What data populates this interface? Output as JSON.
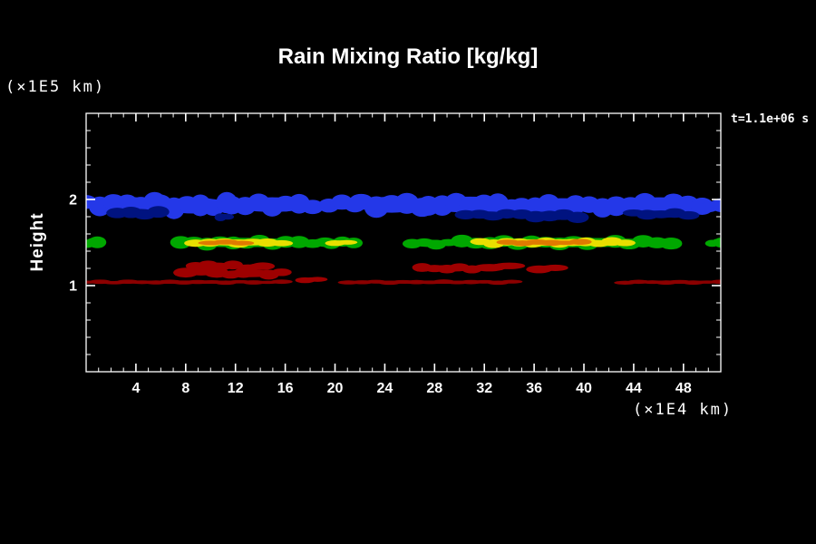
{
  "window": {
    "background": "#000000"
  },
  "chart_data": {
    "type": "heatmap",
    "subtype": "filled-contour cloud field (simulation output)",
    "title": "Rain Mixing Ratio [kg/kg]",
    "annotation": "t=1.1e+06 s",
    "ylabel": "Height",
    "xlabel": "",
    "x_unit_label": "(×1E4 km)",
    "y_unit_label": "(×1E5 km)",
    "xlim": [
      0,
      51
    ],
    "ylim": [
      0,
      3
    ],
    "xticks": [
      4,
      8,
      12,
      16,
      20,
      24,
      28,
      32,
      36,
      40,
      44,
      48
    ],
    "yticks": [
      1,
      2
    ],
    "x_minor_step": 1,
    "y_minor_step": 0.2,
    "frame_color": "#ffffff",
    "text_color": "#ffffff",
    "legend": "none",
    "blob_format": "each blob = [x_start, x_end, y_center, y_half_thickness] in axis units (x: ×1E4 km, y: ×1E5 km)",
    "layers": [
      {
        "name": "upper-cloud-blue",
        "color": "#2438e8",
        "blobs": [
          [
            0,
            5.5,
            1.95,
            0.1
          ],
          [
            6,
            11.3,
            1.93,
            0.11
          ],
          [
            11.7,
            18.2,
            1.94,
            0.1
          ],
          [
            19.5,
            21.6,
            1.95,
            0.08
          ],
          [
            22.1,
            27,
            1.94,
            0.11
          ],
          [
            27.5,
            34.2,
            1.94,
            0.11
          ],
          [
            35,
            41.5,
            1.93,
            0.1
          ],
          [
            42.6,
            49.5,
            1.94,
            0.1
          ],
          [
            50.1,
            51,
            1.93,
            0.07
          ]
        ]
      },
      {
        "name": "upper-cloud-navy",
        "color": "#001380",
        "blobs": [
          [
            2.5,
            5.8,
            1.84,
            0.06
          ],
          [
            10.8,
            11.4,
            1.8,
            0.04
          ],
          [
            30.5,
            33.8,
            1.82,
            0.05
          ],
          [
            35,
            39.5,
            1.81,
            0.06
          ],
          [
            44,
            48.4,
            1.83,
            0.05
          ]
        ]
      },
      {
        "name": "mid-band-green",
        "color": "#00a800",
        "blobs": [
          [
            0,
            0.9,
            1.5,
            0.06
          ],
          [
            7.6,
            17.1,
            1.5,
            0.065
          ],
          [
            18.2,
            19.2,
            1.5,
            0.05
          ],
          [
            19.7,
            21.5,
            1.5,
            0.055
          ],
          [
            26.2,
            29.1,
            1.49,
            0.05
          ],
          [
            30.2,
            47,
            1.5,
            0.065
          ],
          [
            50.3,
            51,
            1.5,
            0.05
          ]
        ]
      },
      {
        "name": "mid-band-yellow",
        "color": "#e8df00",
        "blobs": [
          [
            8.8,
            15.7,
            1.5,
            0.042
          ],
          [
            20,
            21,
            1.5,
            0.03
          ],
          [
            31.7,
            43.3,
            1.5,
            0.045
          ]
        ]
      },
      {
        "name": "mid-band-orange",
        "color": "#e07a00",
        "blobs": [
          [
            10,
            12.5,
            1.5,
            0.026
          ],
          [
            33.9,
            39.7,
            1.5,
            0.03
          ]
        ]
      },
      {
        "name": "lower-scatter-darkred",
        "color": "#9e0000",
        "blobs": [
          [
            8,
            10.5,
            1.16,
            0.05
          ],
          [
            8.8,
            11.8,
            1.23,
            0.045
          ],
          [
            10.6,
            15.7,
            1.14,
            0.05
          ],
          [
            13,
            14.2,
            1.22,
            0.04
          ],
          [
            17.6,
            18.6,
            1.07,
            0.03
          ],
          [
            27,
            31,
            1.2,
            0.045
          ],
          [
            32.4,
            34,
            1.22,
            0.04
          ],
          [
            36.4,
            37.7,
            1.2,
            0.04
          ]
        ]
      },
      {
        "name": "surface-line-darkred",
        "color": "#8b0000",
        "blobs": [
          [
            0,
            15.7,
            1.04,
            0.022
          ],
          [
            21.1,
            34.2,
            1.04,
            0.022
          ],
          [
            43.3,
            51,
            1.04,
            0.022
          ]
        ]
      }
    ]
  }
}
